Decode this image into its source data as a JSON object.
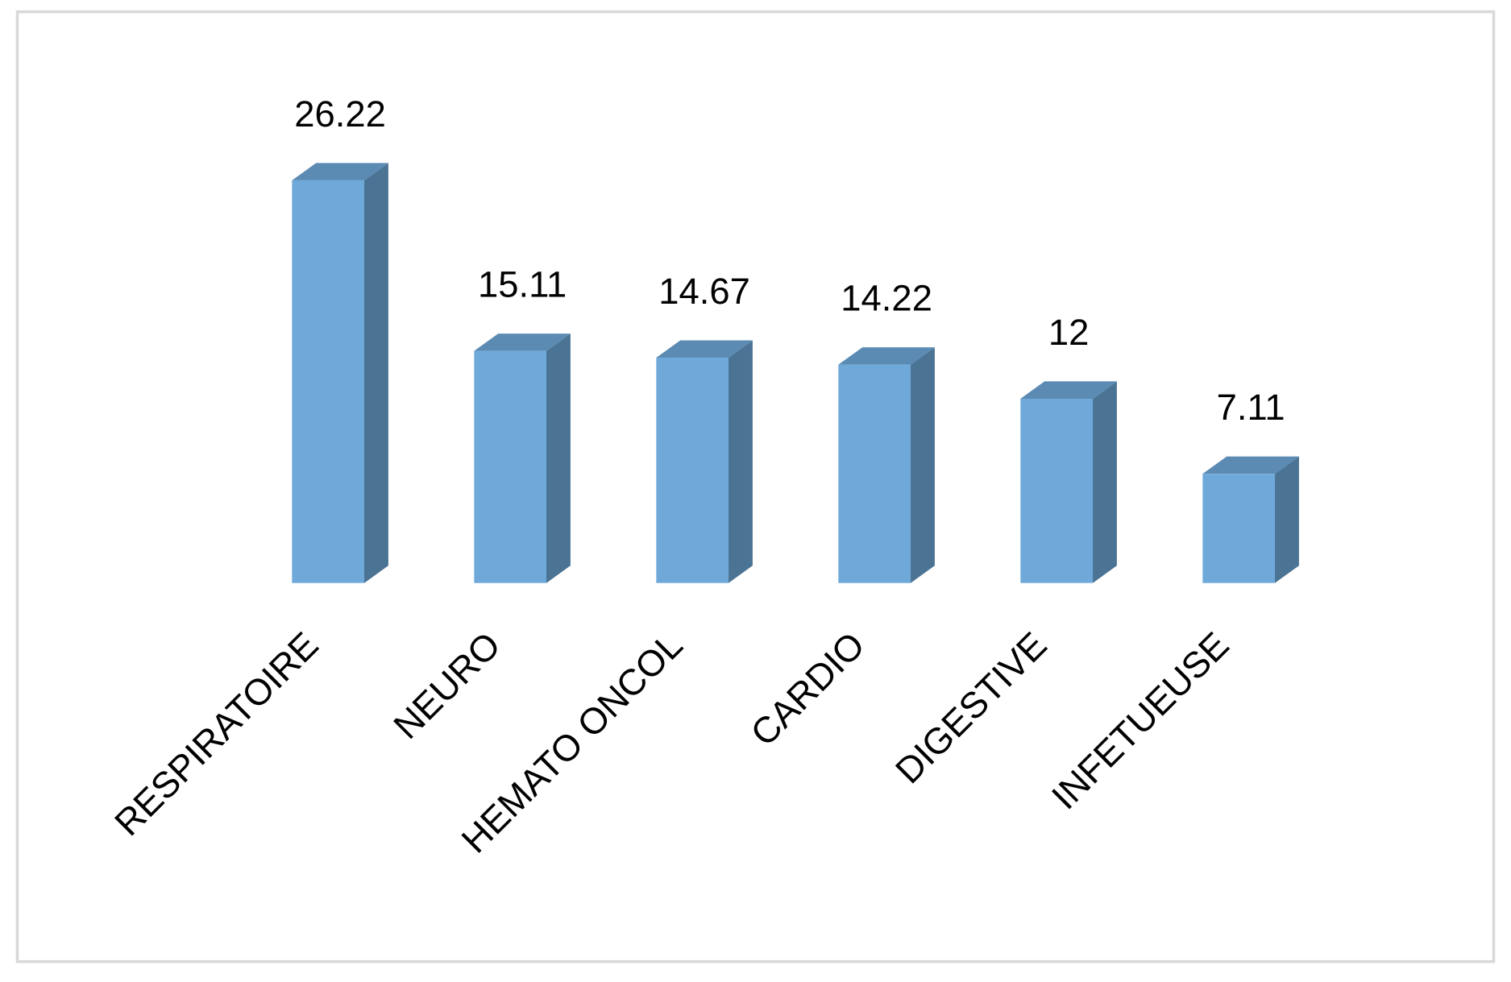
{
  "chart_data": {
    "type": "bar3d",
    "categories": [
      "RESPIRATOIRE",
      "NEURO",
      "HEMATO ONCOL",
      "CARDIO",
      "DIGESTIVE",
      "INFETUEUSE"
    ],
    "values": [
      26.22,
      15.11,
      14.67,
      14.22,
      12,
      7.11
    ],
    "color": "#6fa9da"
  }
}
